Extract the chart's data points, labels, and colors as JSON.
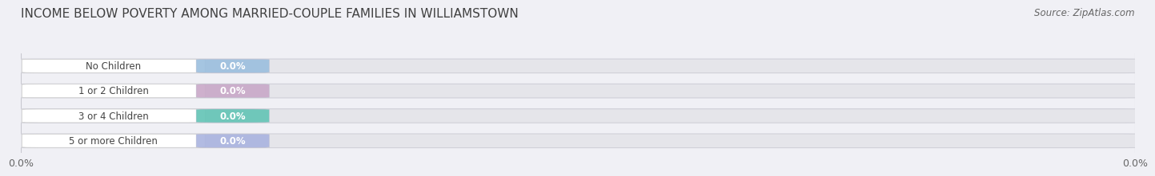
{
  "title": "INCOME BELOW POVERTY AMONG MARRIED-COUPLE FAMILIES IN WILLIAMSTOWN",
  "source": "Source: ZipAtlas.com",
  "categories": [
    "No Children",
    "1 or 2 Children",
    "3 or 4 Children",
    "5 or more Children"
  ],
  "values": [
    0.0,
    0.0,
    0.0,
    0.0
  ],
  "bar_colors": [
    "#9bbfde",
    "#c9a8c8",
    "#62c4b5",
    "#aab4df"
  ],
  "background_color": "#f0f0f5",
  "bar_bg_color": "#e5e5ea",
  "title_fontsize": 11,
  "label_fontsize": 8.5,
  "value_fontsize": 8.5,
  "x_tick_labels": [
    "0.0%",
    "0.0%"
  ],
  "x_tick_positions": [
    0.0,
    1.0
  ]
}
